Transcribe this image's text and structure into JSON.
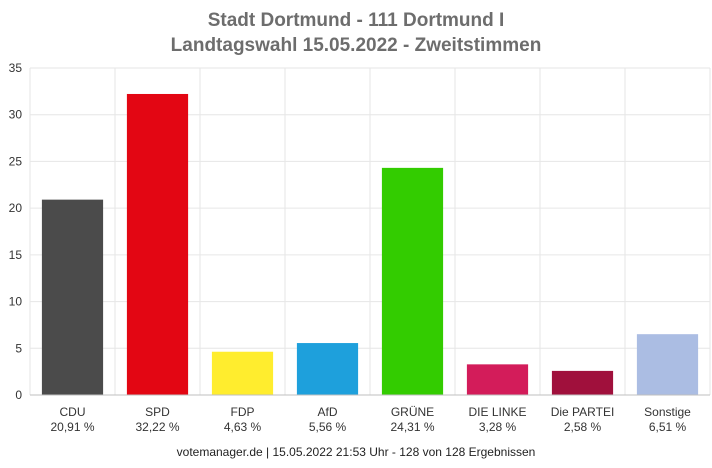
{
  "title_line1": "Stadt Dortmund - 111 Dortmund I",
  "title_line2": "Landtagswahl 15.05.2022  - Zweitstimmen",
  "footer": "votemanager.de | 15.05.2022 21:53 Uhr - 128 von 128 Ergebnissen",
  "chart_data": {
    "type": "bar",
    "title": "Stadt Dortmund - 111 Dortmund I / Landtagswahl 15.05.2022  - Zweitstimmen",
    "categories": [
      "CDU",
      "SPD",
      "FDP",
      "AfD",
      "GRÜNE",
      "DIE LINKE",
      "Die PARTEI",
      "Sonstige"
    ],
    "value_labels": [
      "20,91 %",
      "32,22 %",
      "4,63 %",
      "5,56 %",
      "24,31 %",
      "3,28 %",
      "2,58 %",
      "6,51 %"
    ],
    "values": [
      20.91,
      32.22,
      4.63,
      5.56,
      24.31,
      3.28,
      2.58,
      6.51
    ],
    "colors": [
      "#4b4b4b",
      "#e30613",
      "#ffed2e",
      "#1ea0dc",
      "#33cc00",
      "#d31c5a",
      "#a0103c",
      "#abbde3"
    ],
    "ylim": [
      0,
      35
    ],
    "yticks": [
      0,
      5,
      10,
      15,
      20,
      25,
      30,
      35
    ],
    "grid": true,
    "xlabel": "",
    "ylabel": ""
  }
}
